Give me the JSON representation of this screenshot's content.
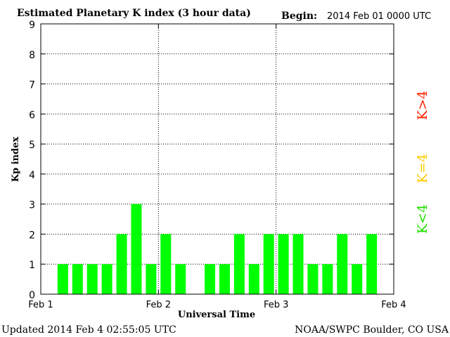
{
  "chart_data": {
    "type": "bar",
    "title": "Estimated Planetary K index (3 hour data)",
    "begin_label": "Begin:",
    "begin_value": "2014 Feb 01 0000 UTC",
    "xlabel": "Universal Time",
    "ylabel": "Kp index",
    "x_ticks": [
      "Feb 1",
      "Feb 2",
      "Feb 3",
      "Feb 4"
    ],
    "y_ticks": [
      "0",
      "1",
      "2",
      "3",
      "4",
      "5",
      "6",
      "7",
      "8",
      "9"
    ],
    "ylim": [
      0,
      9
    ],
    "x_start": "2014-02-01T00:00Z",
    "x_end": "2014-02-04T00:00Z",
    "bar_interval": "3 hours",
    "grid": true,
    "times": [
      "2014-02-01T00:00Z",
      "2014-02-01T03:00Z",
      "2014-02-01T06:00Z",
      "2014-02-01T09:00Z",
      "2014-02-01T12:00Z",
      "2014-02-01T15:00Z",
      "2014-02-01T18:00Z",
      "2014-02-01T21:00Z",
      "2014-02-02T00:00Z",
      "2014-02-02T03:00Z",
      "2014-02-02T06:00Z",
      "2014-02-02T09:00Z",
      "2014-02-02T12:00Z",
      "2014-02-02T15:00Z",
      "2014-02-02T18:00Z",
      "2014-02-02T21:00Z",
      "2014-02-03T00:00Z",
      "2014-02-03T03:00Z",
      "2014-02-03T06:00Z",
      "2014-02-03T09:00Z",
      "2014-02-03T12:00Z",
      "2014-02-03T15:00Z",
      "2014-02-03T18:00Z",
      "2014-02-03T21:00Z"
    ],
    "values": [
      null,
      1,
      1,
      1,
      1,
      2,
      3,
      1,
      2,
      1,
      null,
      1,
      1,
      2,
      1,
      2,
      2,
      2,
      1,
      1,
      2,
      1,
      2,
      null
    ],
    "legend": [
      {
        "label": "K<4",
        "color": "#22dd00"
      },
      {
        "label": "K=4",
        "color": "#ffcc00"
      },
      {
        "label": "K>4",
        "color": "#ff2200"
      }
    ],
    "bar_color": "#00ff00"
  },
  "footer": {
    "updated": "Updated 2014 Feb  4 02:55:05 UTC",
    "source": "NOAA/SWPC Boulder, CO USA"
  }
}
